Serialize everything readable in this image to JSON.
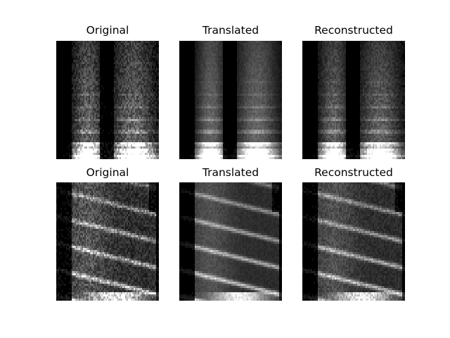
{
  "figure": {
    "rows": [
      {
        "panels": [
          {
            "title": "Original",
            "tone": "sharp"
          },
          {
            "title": "Translated",
            "tone": "smooth"
          },
          {
            "title": "Reconstructed",
            "tone": "medium"
          }
        ]
      },
      {
        "panels": [
          {
            "title": "Original",
            "tone": "sharp"
          },
          {
            "title": "Translated",
            "tone": "smooth"
          },
          {
            "title": "Reconstructed",
            "tone": "medium"
          }
        ]
      }
    ],
    "colors": {
      "background": "#ffffff",
      "spectrogram_bg": "#000000",
      "spectrogram_fg": "#ffffff"
    }
  }
}
